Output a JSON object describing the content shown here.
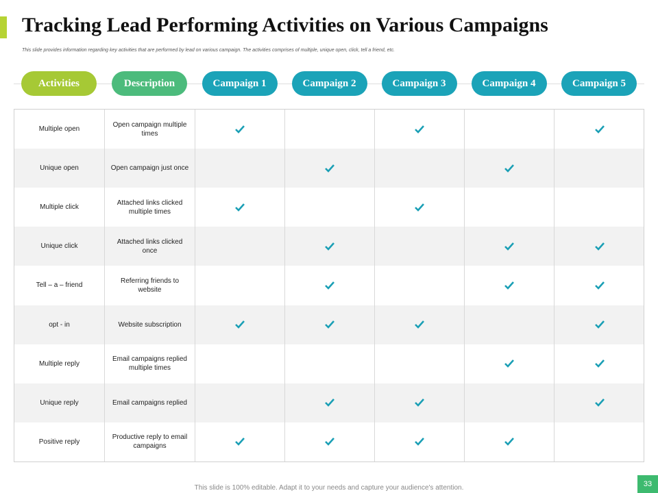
{
  "header": {
    "title": "Tracking Lead Performing Activities on Various Campaigns",
    "subtitle": "This slide provides information  regarding key activities that are performed  by lead on various campaign.  The activities comprises of multiple,  unique open,  click, tell a friend, etc."
  },
  "table": {
    "columns": [
      "Activities",
      "Description",
      "Campaign 1",
      "Campaign 2",
      "Campaign 3",
      "Campaign 4",
      "Campaign 5"
    ],
    "rows": [
      {
        "activity": "Multiple open",
        "description": "Open campaign multiple times",
        "checks": [
          true,
          false,
          true,
          false,
          true
        ]
      },
      {
        "activity": "Unique open",
        "description": "Open campaign just once",
        "checks": [
          false,
          true,
          false,
          true,
          false
        ]
      },
      {
        "activity": "Multiple click",
        "description": "Attached links clicked multiple times",
        "checks": [
          true,
          false,
          true,
          false,
          false
        ]
      },
      {
        "activity": "Unique click",
        "description": "Attached links clicked once",
        "checks": [
          false,
          true,
          false,
          true,
          true
        ]
      },
      {
        "activity": "Tell – a – friend",
        "description": "Referring friends to website",
        "checks": [
          false,
          true,
          false,
          true,
          true
        ]
      },
      {
        "activity": "opt - in",
        "description": "Website subscription",
        "checks": [
          true,
          true,
          true,
          false,
          true
        ]
      },
      {
        "activity": "Multiple reply",
        "description": "Email  campaigns replied multiple times",
        "checks": [
          false,
          false,
          false,
          true,
          true
        ]
      },
      {
        "activity": "Unique reply",
        "description": "Email  campaigns replied",
        "checks": [
          false,
          true,
          true,
          false,
          true
        ]
      },
      {
        "activity": "Positive reply",
        "description": "Productive reply to email campaigns",
        "checks": [
          true,
          true,
          true,
          true,
          false
        ]
      }
    ]
  },
  "footer": {
    "note": "This slide is 100% editable. Adapt it to your needs and capture your audience's attention.",
    "page_number": "33"
  }
}
